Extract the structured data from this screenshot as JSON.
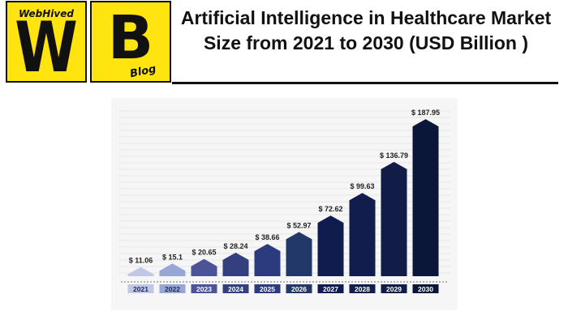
{
  "logos": {
    "left": {
      "brand_text": "WebHived",
      "letter": "W"
    },
    "right": {
      "letter": "B",
      "sub_text": "Blog"
    }
  },
  "header": {
    "title": "Artificial Intelligence in Healthcare Market Size from 2021 to 2030 (USD Billion )"
  },
  "colors": {
    "logo_background": "#ffe40f",
    "bars": [
      "#c1c7e6",
      "#96a6d5",
      "#4a5497",
      "#333f7e",
      "#2c3a7e",
      "#223868",
      "#101c4d",
      "#111d4d",
      "#111c47",
      "#0b1739"
    ]
  },
  "chart_data": {
    "type": "bar",
    "title": "",
    "xlabel": "",
    "ylabel": "",
    "categories": [
      "2021",
      "2022",
      "2023",
      "2024",
      "2025",
      "2026",
      "2027",
      "2028",
      "2029",
      "2030"
    ],
    "values": [
      11.06,
      15.1,
      20.65,
      28.24,
      38.66,
      52.97,
      72.62,
      99.63,
      136.79,
      187.95
    ],
    "value_labels": [
      "$ 11.06",
      "$ 15.1",
      "$ 20.65",
      "$ 28.24",
      "$ 38.66",
      "$ 52.97",
      "$ 72.62",
      "$ 99.63",
      "$ 136.79",
      "$ 187.95"
    ],
    "grid": true,
    "legend": false
  }
}
